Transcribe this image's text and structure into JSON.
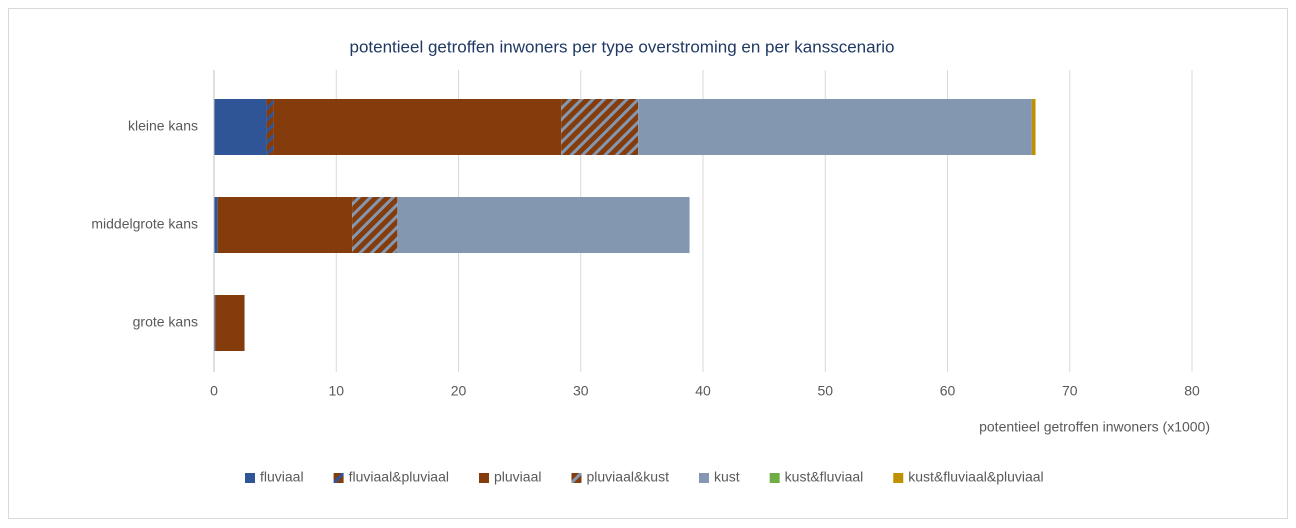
{
  "chart_data": {
    "type": "bar",
    "orientation": "horizontal",
    "stacked": true,
    "title": "potentieel getroffen inwoners per type overstroming en per kansscenario",
    "x_label": "potentieel getroffen inwoners (x1000)",
    "categories": [
      "kleine kans",
      "middelgrote kans",
      "grote kans"
    ],
    "series": [
      {
        "name": "fluviaal",
        "color": "#2f5597",
        "values": [
          4.3,
          0.3,
          0.1
        ]
      },
      {
        "name": "fluviaal&pluviaal",
        "color": "#843c0c",
        "hatch_color": "#2f5597",
        "values": [
          0.6,
          0.0,
          0.0
        ]
      },
      {
        "name": "pluviaal",
        "color": "#843c0c",
        "values": [
          23.5,
          11.0,
          2.4
        ]
      },
      {
        "name": "pluviaal&kust",
        "color": "#843c0c",
        "hatch_color": "#8497b0",
        "values": [
          6.3,
          3.7,
          0.0
        ]
      },
      {
        "name": "kust",
        "color": "#8497b0",
        "values": [
          32.2,
          23.9,
          0.0
        ]
      },
      {
        "name": "kust&fluviaal",
        "color": "#70ad47",
        "values": [
          0.0,
          0.0,
          0.0
        ]
      },
      {
        "name": "kust&fluviaal&pluviaal",
        "color": "#bf9000",
        "values": [
          0.3,
          0.0,
          0.0
        ]
      }
    ],
    "xlim": [
      0,
      80
    ],
    "xticks": [
      0,
      10,
      20,
      30,
      40,
      50,
      60,
      70,
      80
    ],
    "grid": true,
    "legend": "bottom"
  }
}
